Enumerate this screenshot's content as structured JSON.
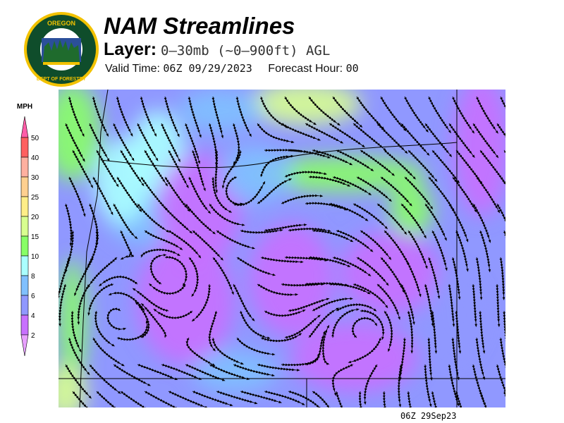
{
  "header": {
    "title": "NAM Streamlines",
    "layer_label": "Layer:",
    "layer_value": "0–30mb (~0–900ft) AGL",
    "valid_label": "Valid Time:",
    "valid_value": "06Z 09/29/2023",
    "forecast_label": "Forecast Hour:",
    "forecast_value": "00"
  },
  "logo": {
    "top_text": "OREGON",
    "bottom_text": "DEPARTMENT OF FORESTRY"
  },
  "colorbar": {
    "unit": "MPH",
    "labels": [
      "50",
      "40",
      "30",
      "25",
      "20",
      "15",
      "10",
      "8",
      "6",
      "4",
      "2"
    ],
    "colors": [
      "#ff5ca8",
      "#ff6060",
      "#ffb0a0",
      "#ffd090",
      "#ffee88",
      "#d8ff90",
      "#88ff66",
      "#aaffff",
      "#80c0ff",
      "#9098ff",
      "#c870ff",
      "#e8a0ff"
    ]
  },
  "map": {
    "timestamp": "06Z 29Sep23"
  }
}
